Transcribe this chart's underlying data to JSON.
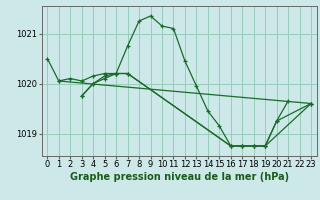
{
  "background_color": "#cce8e8",
  "plot_bg_color": "#cce8e8",
  "grid_color": "#99ccbb",
  "line_color": "#1a6b2a",
  "xlabel": "Graphe pression niveau de la mer (hPa)",
  "xlim": [
    -0.5,
    23.5
  ],
  "ylim": [
    1018.55,
    1021.55
  ],
  "yticks": [
    1019,
    1020,
    1021
  ],
  "ytick_labels": [
    "1019",
    "1020",
    "1021"
  ],
  "xticks": [
    0,
    1,
    2,
    3,
    4,
    5,
    6,
    7,
    8,
    9,
    10,
    11,
    12,
    13,
    14,
    15,
    16,
    17,
    18,
    19,
    20,
    21,
    22,
    23
  ],
  "series": [
    {
      "points": [
        [
          0,
          1020.5
        ],
        [
          1,
          1020.05
        ],
        [
          2,
          1020.1
        ],
        [
          3,
          1020.05
        ],
        [
          4,
          1020.15
        ],
        [
          5,
          1020.2
        ],
        [
          6,
          1020.2
        ],
        [
          7,
          1020.75
        ],
        [
          8,
          1021.25
        ],
        [
          9,
          1021.35
        ],
        [
          10,
          1021.15
        ],
        [
          11,
          1021.1
        ],
        [
          12,
          1020.45
        ],
        [
          13,
          1019.95
        ],
        [
          14,
          1019.45
        ],
        [
          15,
          1019.15
        ],
        [
          16,
          1018.75
        ],
        [
          17,
          1018.75
        ],
        [
          18,
          1018.75
        ],
        [
          19,
          1018.75
        ],
        [
          20,
          1019.25
        ],
        [
          21,
          1019.65
        ]
      ]
    },
    {
      "points": [
        [
          3,
          1019.75
        ],
        [
          4,
          1020.0
        ],
        [
          5,
          1020.15
        ],
        [
          6,
          1020.2
        ],
        [
          7,
          1020.2
        ],
        [
          16,
          1018.75
        ],
        [
          17,
          1018.75
        ],
        [
          18,
          1018.75
        ],
        [
          19,
          1018.75
        ],
        [
          20,
          1019.25
        ],
        [
          23,
          1019.6
        ]
      ]
    },
    {
      "points": [
        [
          3,
          1019.75
        ],
        [
          4,
          1020.0
        ],
        [
          5,
          1020.1
        ],
        [
          6,
          1020.2
        ],
        [
          7,
          1020.2
        ],
        [
          16,
          1018.75
        ],
        [
          17,
          1018.75
        ],
        [
          18,
          1018.75
        ],
        [
          19,
          1018.75
        ],
        [
          23,
          1019.6
        ]
      ]
    },
    {
      "points": [
        [
          1,
          1020.05
        ],
        [
          23,
          1019.6
        ]
      ]
    }
  ],
  "axis_fontsize": 7,
  "tick_fontsize": 6
}
